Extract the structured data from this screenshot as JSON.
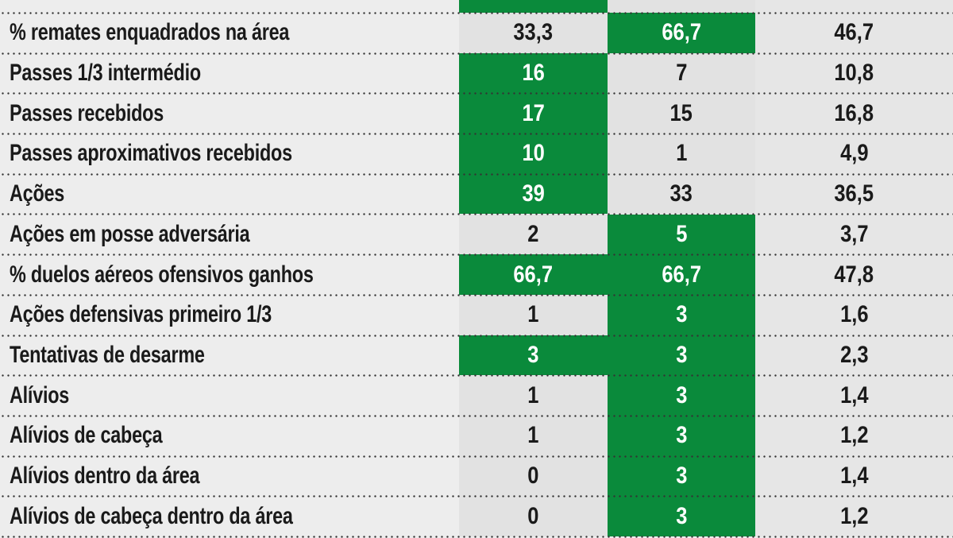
{
  "colors": {
    "highlight": "#0a8a3b",
    "cell": "#e2e2e2"
  },
  "rows": [
    {
      "label": "% remates enquadrados na área",
      "v1": "33,3",
      "v2": "66,7",
      "avg": "46,7",
      "hl": [
        false,
        true
      ]
    },
    {
      "label": "Passes 1/3 intermédio",
      "v1": "16",
      "v2": "7",
      "avg": "10,8",
      "hl": [
        true,
        false
      ]
    },
    {
      "label": "Passes recebidos",
      "v1": "17",
      "v2": "15",
      "avg": "16,8",
      "hl": [
        true,
        false
      ]
    },
    {
      "label": "Passes aproximativos recebidos",
      "v1": "10",
      "v2": "1",
      "avg": "4,9",
      "hl": [
        true,
        false
      ]
    },
    {
      "label": "Ações",
      "v1": "39",
      "v2": "33",
      "avg": "36,5",
      "hl": [
        true,
        false
      ]
    },
    {
      "label": "Ações em posse adversária",
      "v1": "2",
      "v2": "5",
      "avg": "3,7",
      "hl": [
        false,
        true
      ]
    },
    {
      "label": "% duelos aéreos ofensivos ganhos",
      "v1": "66,7",
      "v2": "66,7",
      "avg": "47,8",
      "hl": [
        true,
        true
      ]
    },
    {
      "label": "Ações defensivas primeiro 1/3",
      "v1": "1",
      "v2": "3",
      "avg": "1,6",
      "hl": [
        false,
        true
      ]
    },
    {
      "label": "Tentativas de desarme",
      "v1": "3",
      "v2": "3",
      "avg": "2,3",
      "hl": [
        true,
        true
      ]
    },
    {
      "label": "Alívios",
      "v1": "1",
      "v2": "3",
      "avg": "1,4",
      "hl": [
        false,
        true
      ]
    },
    {
      "label": "Alívios de cabeça",
      "v1": "1",
      "v2": "3",
      "avg": "1,2",
      "hl": [
        false,
        true
      ]
    },
    {
      "label": "Alívios dentro da área",
      "v1": "0",
      "v2": "3",
      "avg": "1,4",
      "hl": [
        false,
        true
      ]
    },
    {
      "label": "Alívios de cabeça dentro da área",
      "v1": "0",
      "v2": "3",
      "avg": "1,2",
      "hl": [
        false,
        true
      ]
    }
  ]
}
